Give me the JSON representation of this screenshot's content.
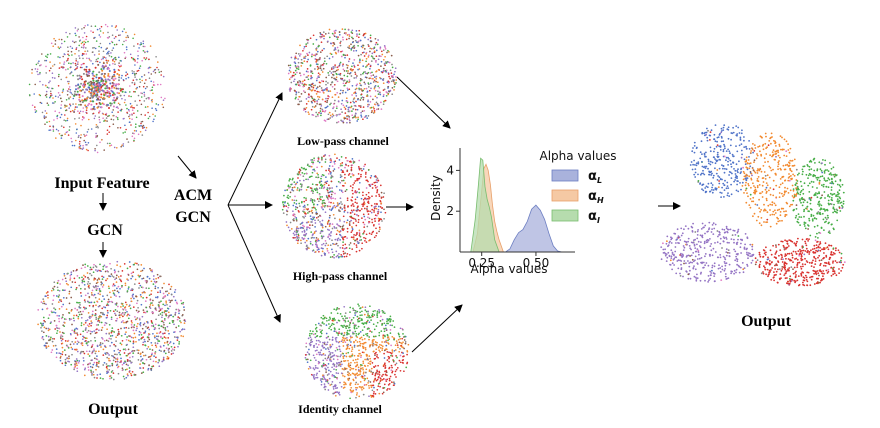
{
  "labels": {
    "input_feature": "Input Feature",
    "gcn": "GCN",
    "output_left": "Output",
    "acm_line1": "ACM",
    "acm_line2": "GCN",
    "low_pass": "Low-pass channel",
    "high_pass": "High-pass channel",
    "identity": "Identity channel",
    "output_right": "Output"
  },
  "chart_data": {
    "type": "area",
    "title": "",
    "xlabel": "Alpha values",
    "ylabel": "Density",
    "xticks": [
      0.25,
      0.5
    ],
    "xtick_labels": [
      "0.25",
      "0.50"
    ],
    "yticks": [
      2,
      4
    ],
    "xlim": [
      0.15,
      0.68
    ],
    "ylim": [
      0,
      5.0
    ],
    "legend": {
      "title": "Alpha values",
      "placement": "right",
      "entries": [
        {
          "symbol": "α",
          "sub": "L"
        },
        {
          "symbol": "α",
          "sub": "H"
        },
        {
          "symbol": "α",
          "sub": "I"
        }
      ]
    },
    "series": [
      {
        "key": "L",
        "color": "#6c7ec2",
        "fill": "#a9b2dc",
        "x": [
          0.36,
          0.38,
          0.4,
          0.42,
          0.44,
          0.46,
          0.48,
          0.5,
          0.52,
          0.54,
          0.56,
          0.58,
          0.6,
          0.62
        ],
        "y": [
          0.0,
          0.15,
          0.6,
          0.95,
          1.1,
          1.5,
          2.1,
          2.3,
          2.05,
          1.6,
          0.9,
          0.3,
          0.05,
          0.0
        ]
      },
      {
        "key": "H",
        "color": "#e8a06a",
        "fill": "#f5c9a4",
        "x": [
          0.21,
          0.23,
          0.25,
          0.26,
          0.27,
          0.28,
          0.29,
          0.3,
          0.31,
          0.32,
          0.33,
          0.35
        ],
        "y": [
          0.0,
          0.9,
          3.0,
          4.1,
          4.3,
          4.0,
          3.3,
          2.3,
          1.5,
          1.0,
          0.6,
          0.0
        ]
      },
      {
        "key": "I",
        "color": "#79bd6f",
        "fill": "#b6dcae",
        "x": [
          0.2,
          0.22,
          0.235,
          0.245,
          0.255,
          0.265,
          0.275,
          0.285,
          0.295,
          0.31,
          0.33
        ],
        "y": [
          0.0,
          1.6,
          3.3,
          4.6,
          4.5,
          3.2,
          2.6,
          2.2,
          1.7,
          0.6,
          0.0
        ]
      }
    ]
  },
  "colors": {
    "blue": "#4f73c8",
    "orange": "#f28a30",
    "green": "#46ad46",
    "red": "#d9322f",
    "purple": "#9474c4",
    "brown": "#8a5b4a",
    "pink": "#e07ac4",
    "gray": "#888888"
  },
  "icons": {
    "arrow": "arrow-icon"
  }
}
